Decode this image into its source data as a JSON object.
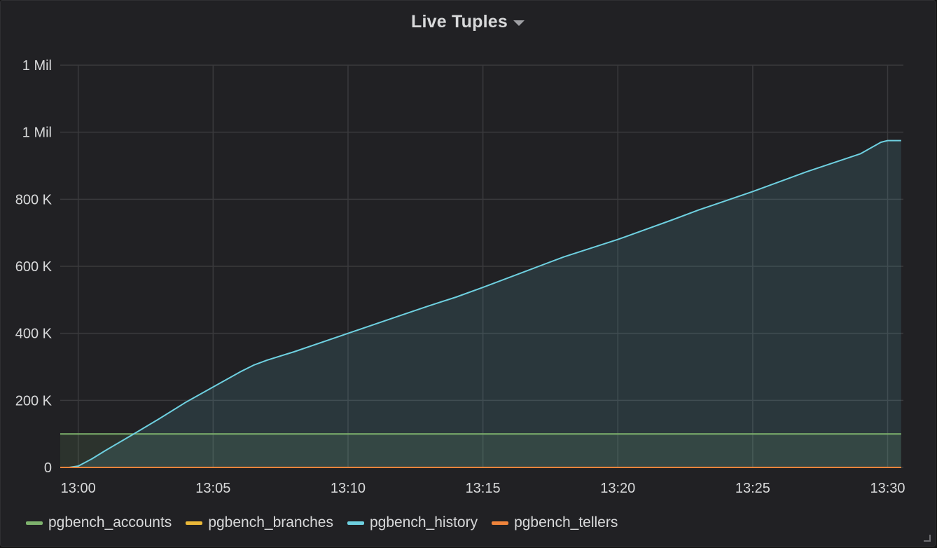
{
  "panel": {
    "title": "Live Tuples"
  },
  "chart_data": {
    "type": "line",
    "title": "Live Tuples",
    "xlabel": "",
    "ylabel": "",
    "x_ticks": [
      "13:00",
      "13:05",
      "13:10",
      "13:15",
      "13:20",
      "13:25",
      "13:30"
    ],
    "y_ticks": [
      {
        "value": 0,
        "label": "0"
      },
      {
        "value": 200000,
        "label": "200 K"
      },
      {
        "value": 400000,
        "label": "400 K"
      },
      {
        "value": 600000,
        "label": "600 K"
      },
      {
        "value": 800000,
        "label": "800 K"
      },
      {
        "value": 1000000,
        "label": "1 Mil"
      },
      {
        "value": 1200000,
        "label": "1 Mil"
      }
    ],
    "xlim": [
      "12:59:20",
      "13:30:35"
    ],
    "ylim": [
      0,
      1200000
    ],
    "grid": true,
    "legend_position": "bottom-left",
    "series": [
      {
        "name": "pgbench_accounts",
        "color": "#7eb26d",
        "fill": true,
        "x": [
          "12:59:20",
          "13:30:30"
        ],
        "values": [
          100000,
          100000
        ]
      },
      {
        "name": "pgbench_branches",
        "color": "#eab839",
        "fill": false,
        "x": [
          "12:59:20",
          "13:30:30"
        ],
        "values": [
          1,
          1
        ]
      },
      {
        "name": "pgbench_history",
        "color": "#6ed0e0",
        "fill": true,
        "x": [
          "12:59:40",
          "13:00:00",
          "13:00:30",
          "13:01:00",
          "13:02:00",
          "13:03:00",
          "13:04:00",
          "13:05:00",
          "13:06:00",
          "13:06:30",
          "13:07:00",
          "13:08:00",
          "13:10:00",
          "13:12:00",
          "13:13:00",
          "13:14:00",
          "13:15:00",
          "13:17:00",
          "13:18:00",
          "13:20:00",
          "13:22:00",
          "13:23:00",
          "13:25:00",
          "13:27:00",
          "13:29:00",
          "13:29:45",
          "13:30:00",
          "13:30:30"
        ],
        "values": [
          0,
          4000,
          25000,
          50000,
          97000,
          145000,
          195000,
          240000,
          285000,
          305000,
          320000,
          345000,
          400000,
          455000,
          482000,
          508000,
          537000,
          598000,
          628000,
          680000,
          738000,
          768000,
          823000,
          882000,
          936000,
          970000,
          975000,
          975000
        ]
      },
      {
        "name": "pgbench_tellers",
        "color": "#ef843c",
        "fill": false,
        "x": [
          "12:59:20",
          "13:30:30"
        ],
        "values": [
          10,
          10
        ]
      }
    ]
  }
}
